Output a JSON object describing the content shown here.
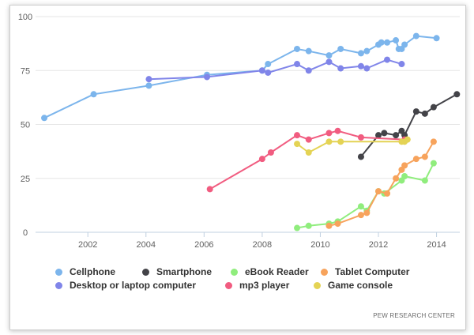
{
  "chart_data": {
    "type": "line",
    "title": "",
    "xlabel": "",
    "ylabel": "",
    "xlim": [
      2000.2,
      2014.8
    ],
    "ylim": [
      0,
      100
    ],
    "x_ticks": [
      "2002",
      "2004",
      "2006",
      "2008",
      "2010",
      "2012",
      "2014"
    ],
    "y_ticks": [
      "0",
      "25",
      "50",
      "75",
      "100"
    ],
    "grid": "horizontal",
    "legend_position": "bottom",
    "series": [
      {
        "name": "Cellphone",
        "color": "#7cb5ec",
        "points": [
          [
            2000.5,
            53
          ],
          [
            2002.2,
            64
          ],
          [
            2004.1,
            68
          ],
          [
            2006.1,
            73
          ],
          [
            2008.0,
            75
          ],
          [
            2008.2,
            78
          ],
          [
            2009.2,
            85
          ],
          [
            2009.6,
            84
          ],
          [
            2010.3,
            82
          ],
          [
            2010.7,
            85
          ],
          [
            2011.4,
            83
          ],
          [
            2011.6,
            84
          ],
          [
            2012.0,
            87
          ],
          [
            2012.1,
            88
          ],
          [
            2012.3,
            88
          ],
          [
            2012.6,
            89
          ],
          [
            2012.7,
            85
          ],
          [
            2012.8,
            85
          ],
          [
            2012.9,
            87
          ],
          [
            2013.3,
            91
          ],
          [
            2014.0,
            90
          ]
        ]
      },
      {
        "name": "Desktop or laptop computer",
        "color": "#8085e9",
        "points": [
          [
            2004.1,
            71
          ],
          [
            2006.1,
            72
          ],
          [
            2008.0,
            75
          ],
          [
            2008.2,
            74
          ],
          [
            2009.2,
            78
          ],
          [
            2009.6,
            75
          ],
          [
            2010.3,
            79
          ],
          [
            2010.7,
            76
          ],
          [
            2011.4,
            77
          ],
          [
            2011.6,
            76
          ],
          [
            2012.3,
            80
          ],
          [
            2012.8,
            78
          ]
        ]
      },
      {
        "name": "Smartphone",
        "color": "#434348",
        "points": [
          [
            2011.4,
            35
          ],
          [
            2012.0,
            45
          ],
          [
            2012.2,
            46
          ],
          [
            2012.6,
            45
          ],
          [
            2012.8,
            47
          ],
          [
            2012.9,
            45
          ],
          [
            2013.3,
            56
          ],
          [
            2013.6,
            55
          ],
          [
            2013.9,
            58
          ],
          [
            2014.7,
            64
          ]
        ]
      },
      {
        "name": "mp3 player",
        "color": "#f15c80",
        "points": [
          [
            2006.2,
            20
          ],
          [
            2008.0,
            34
          ],
          [
            2008.3,
            37
          ],
          [
            2009.2,
            45
          ],
          [
            2009.6,
            43
          ],
          [
            2010.3,
            46
          ],
          [
            2010.6,
            47
          ],
          [
            2011.4,
            44
          ],
          [
            2012.9,
            43
          ]
        ]
      },
      {
        "name": "eBook Reader",
        "color": "#90ed7d",
        "points": [
          [
            2009.2,
            2
          ],
          [
            2009.6,
            3
          ],
          [
            2010.3,
            4
          ],
          [
            2010.6,
            5
          ],
          [
            2011.4,
            12
          ],
          [
            2011.6,
            10
          ],
          [
            2012.0,
            19
          ],
          [
            2012.2,
            18
          ],
          [
            2012.8,
            24
          ],
          [
            2012.9,
            26
          ],
          [
            2013.6,
            24
          ],
          [
            2013.9,
            32
          ]
        ]
      },
      {
        "name": "Tablet Computer",
        "color": "#f7a35c",
        "points": [
          [
            2010.3,
            3
          ],
          [
            2010.6,
            4
          ],
          [
            2011.4,
            8
          ],
          [
            2011.6,
            9
          ],
          [
            2012.0,
            19
          ],
          [
            2012.3,
            18
          ],
          [
            2012.6,
            25
          ],
          [
            2012.8,
            29
          ],
          [
            2012.9,
            31
          ],
          [
            2013.3,
            34
          ],
          [
            2013.6,
            35
          ],
          [
            2013.9,
            42
          ]
        ]
      },
      {
        "name": "Game console",
        "color": "#e4d354",
        "points": [
          [
            2009.2,
            41
          ],
          [
            2009.6,
            37
          ],
          [
            2010.3,
            42
          ],
          [
            2010.7,
            42
          ],
          [
            2012.8,
            42
          ],
          [
            2012.9,
            42
          ],
          [
            2013.0,
            43
          ]
        ]
      }
    ],
    "legend_order": [
      "Cellphone",
      "Smartphone",
      "eBook Reader",
      "Tablet Computer",
      "Desktop or laptop computer",
      "mp3 player",
      "Game console"
    ]
  },
  "source": "PEW RESEARCH CENTER"
}
